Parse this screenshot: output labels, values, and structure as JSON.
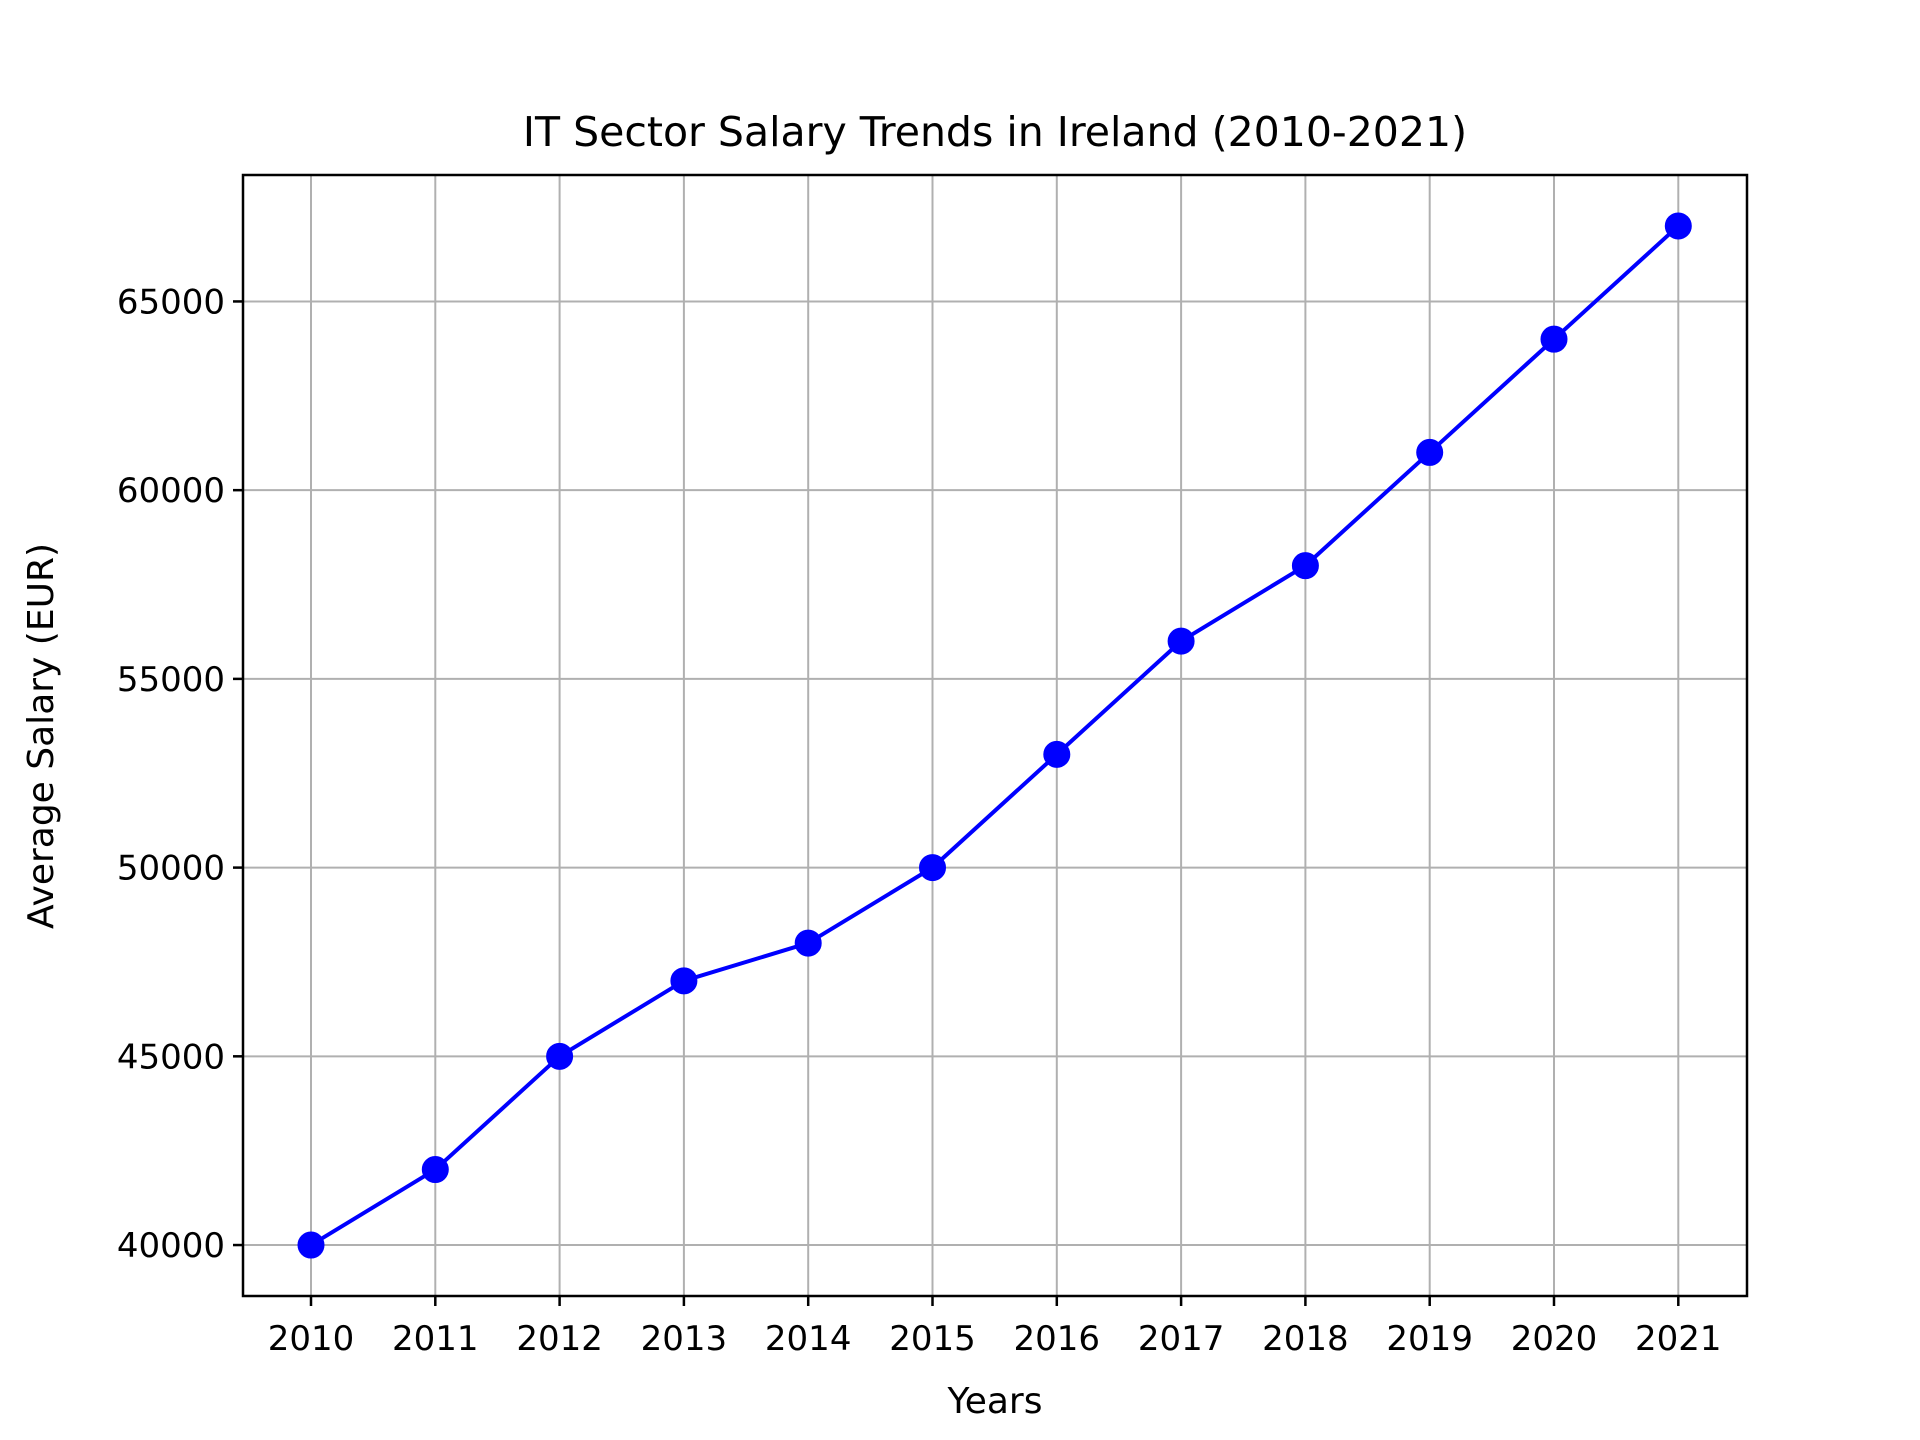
{
  "chart_data": {
    "type": "line",
    "title": "IT Sector Salary Trends in Ireland (2010-2021)",
    "xlabel": "Years",
    "ylabel": "Average Salary (EUR)",
    "x": [
      "2010",
      "2011",
      "2012",
      "2013",
      "2014",
      "2015",
      "2016",
      "2017",
      "2018",
      "2019",
      "2020",
      "2021"
    ],
    "series": [
      {
        "values": [
          40000,
          42000,
          45000,
          47000,
          48000,
          50000,
          53000,
          56000,
          58000,
          61000,
          64000,
          67000
        ],
        "color": "#0000ff",
        "marker": "circle"
      }
    ],
    "yticks": [
      "40000",
      "45000",
      "50000",
      "55000",
      "60000",
      "65000"
    ],
    "ylim": [
      38650,
      68350
    ],
    "grid": true,
    "legend": "none"
  }
}
